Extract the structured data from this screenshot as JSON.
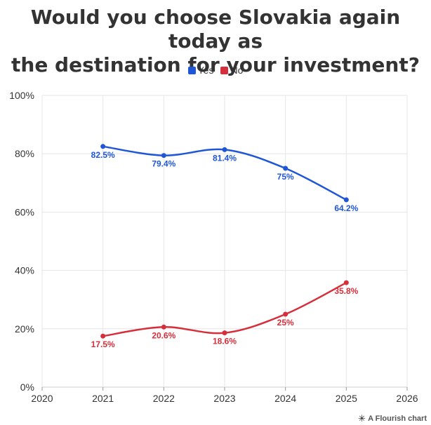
{
  "title_line1": "Would you choose Slovakia again today as",
  "title_line2": "the destination for your investment?",
  "footer": {
    "credit": "A Flourish chart"
  },
  "colors": {
    "yes": "#1f56d6",
    "no": "#d62f3c",
    "grid": "#e6e6e6",
    "axis": "#333333"
  },
  "chart_data": {
    "type": "line",
    "title": "Would you choose Slovakia again today as the destination for your investment?",
    "x": [
      2021,
      2022,
      2023,
      2024,
      2025
    ],
    "xlim": [
      2020,
      2026
    ],
    "x_ticks": [
      "2020",
      "2021",
      "2022",
      "2023",
      "2024",
      "2025",
      "2026"
    ],
    "ylim": [
      0,
      100
    ],
    "y_ticks": [
      "0%",
      "20%",
      "40%",
      "60%",
      "80%",
      "100%"
    ],
    "grid": true,
    "legend_position": "top-center",
    "series": [
      {
        "name": "Yes",
        "color": "#1f56d6",
        "values": [
          82.5,
          79.4,
          81.4,
          75,
          64.2
        ],
        "labels": [
          "82.5%",
          "79.4%",
          "81.4%",
          "75%",
          "64.2%"
        ]
      },
      {
        "name": "No",
        "color": "#d62f3c",
        "values": [
          17.5,
          20.6,
          18.6,
          25,
          35.8
        ],
        "labels": [
          "17.5%",
          "20.6%",
          "18.6%",
          "25%",
          "35.8%"
        ]
      }
    ]
  }
}
